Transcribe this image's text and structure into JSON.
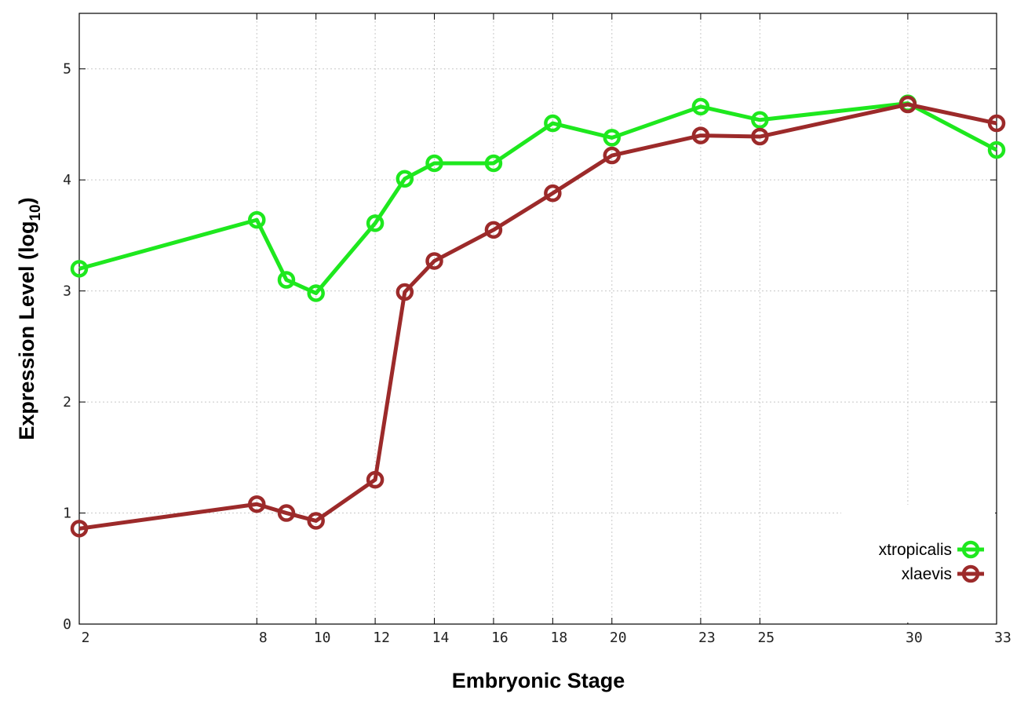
{
  "chart_data": {
    "type": "line",
    "title": "",
    "xlabel": "Embryonic Stage",
    "ylabel_main": "Expression Level (log",
    "ylabel_sub": "10",
    "ylabel_close": ")",
    "xlim": [
      2,
      33
    ],
    "ylim": [
      0,
      5.5
    ],
    "x_ticks": [
      2,
      8,
      10,
      12,
      14,
      16,
      18,
      20,
      23,
      25,
      30,
      33
    ],
    "y_ticks": [
      0,
      1,
      2,
      3,
      4,
      5
    ],
    "grid": true,
    "legend_position": "bottom-right",
    "x": [
      2,
      8,
      9,
      10,
      12,
      13,
      14,
      16,
      18,
      20,
      23,
      25,
      30,
      33
    ],
    "series": [
      {
        "name": "xtropicalis",
        "color": "#1ee81e",
        "values": [
          3.2,
          3.64,
          3.1,
          2.98,
          3.61,
          4.01,
          4.15,
          4.15,
          4.51,
          4.38,
          4.66,
          4.54,
          4.69,
          4.27
        ]
      },
      {
        "name": "xlaevis",
        "color": "#9c2a2a",
        "values": [
          0.86,
          1.08,
          1.0,
          0.93,
          1.3,
          2.99,
          3.27,
          3.55,
          3.88,
          4.22,
          4.4,
          4.39,
          4.68,
          4.51
        ]
      }
    ]
  }
}
